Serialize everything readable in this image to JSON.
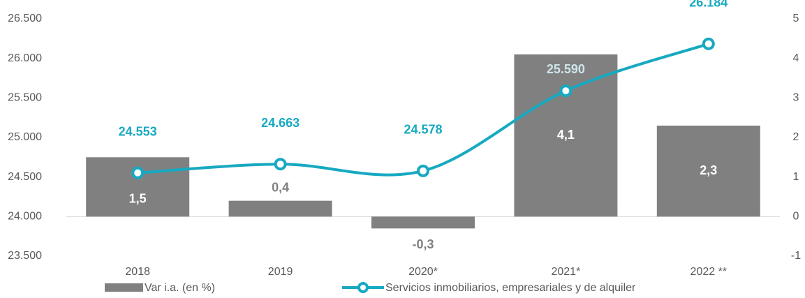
{
  "chart_data": {
    "type": "bar_line",
    "categories": [
      "2018",
      "2019",
      "2020*",
      "2021*",
      "2022 **"
    ],
    "series": [
      {
        "name": "Var i.a. (en %)",
        "type": "bar",
        "axis": "y2",
        "color": "#808080",
        "values": [
          1.5,
          0.4,
          -0.3,
          4.1,
          2.3
        ],
        "value_labels": [
          "1,5",
          "0,4",
          "-0,3",
          "4,1",
          "2,3"
        ]
      },
      {
        "name": "Servicios inmobiliarios, empresariales y de alquiler",
        "type": "line",
        "color": "#17a9c1",
        "values": [
          24553,
          24663,
          24578,
          25590,
          26184
        ],
        "value_labels": [
          "24.553",
          "24.663",
          "24.578",
          "25.590",
          "26.184"
        ]
      }
    ],
    "ylim": [
      23500,
      26500
    ],
    "yticks": [
      {
        "value": 23500,
        "label": "23.500"
      },
      {
        "value": 24000,
        "label": "24.000"
      },
      {
        "value": 24500,
        "label": "24.500"
      },
      {
        "value": 25000,
        "label": "25.000"
      },
      {
        "value": 25500,
        "label": "25.500"
      },
      {
        "value": 26000,
        "label": "26.000"
      },
      {
        "value": 26500,
        "label": "26.500"
      }
    ],
    "y2lim": [
      -1,
      5
    ],
    "y2ticks": [
      -1,
      0,
      1,
      2,
      3,
      4,
      5
    ]
  }
}
